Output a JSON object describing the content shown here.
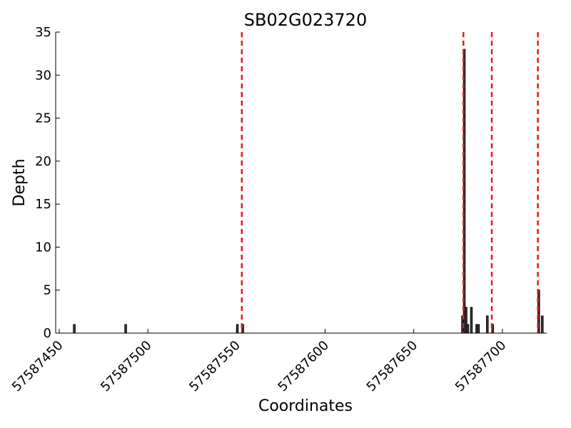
{
  "chart_data": {
    "type": "bar",
    "title": "SB02G023720",
    "x_label": "Coordinates",
    "y_label": "Depth",
    "x": [
      57587458,
      57587487,
      57587550,
      57587553,
      57587677,
      57587678,
      57587679,
      57587680,
      57587682,
      57587685,
      57587686,
      57587691,
      57587694,
      57587720,
      57587722
    ],
    "values": [
      1,
      1,
      1,
      1,
      2,
      33,
      3,
      1,
      3,
      1,
      1,
      2,
      1,
      5,
      2
    ],
    "color": "#404040",
    "edge_color": "#000000",
    "vlines": [
      57587553,
      57587678,
      57587694,
      57587720
    ],
    "vline_color": "#e31a1c",
    "xlim": [
      57587448,
      57587725
    ],
    "xticks": [
      57587450,
      57587500,
      57587550,
      57587600,
      57587650,
      57587700
    ],
    "ylim": [
      0,
      35
    ],
    "yticks": [
      0,
      5,
      10,
      15,
      20,
      25,
      30,
      35
    ]
  }
}
